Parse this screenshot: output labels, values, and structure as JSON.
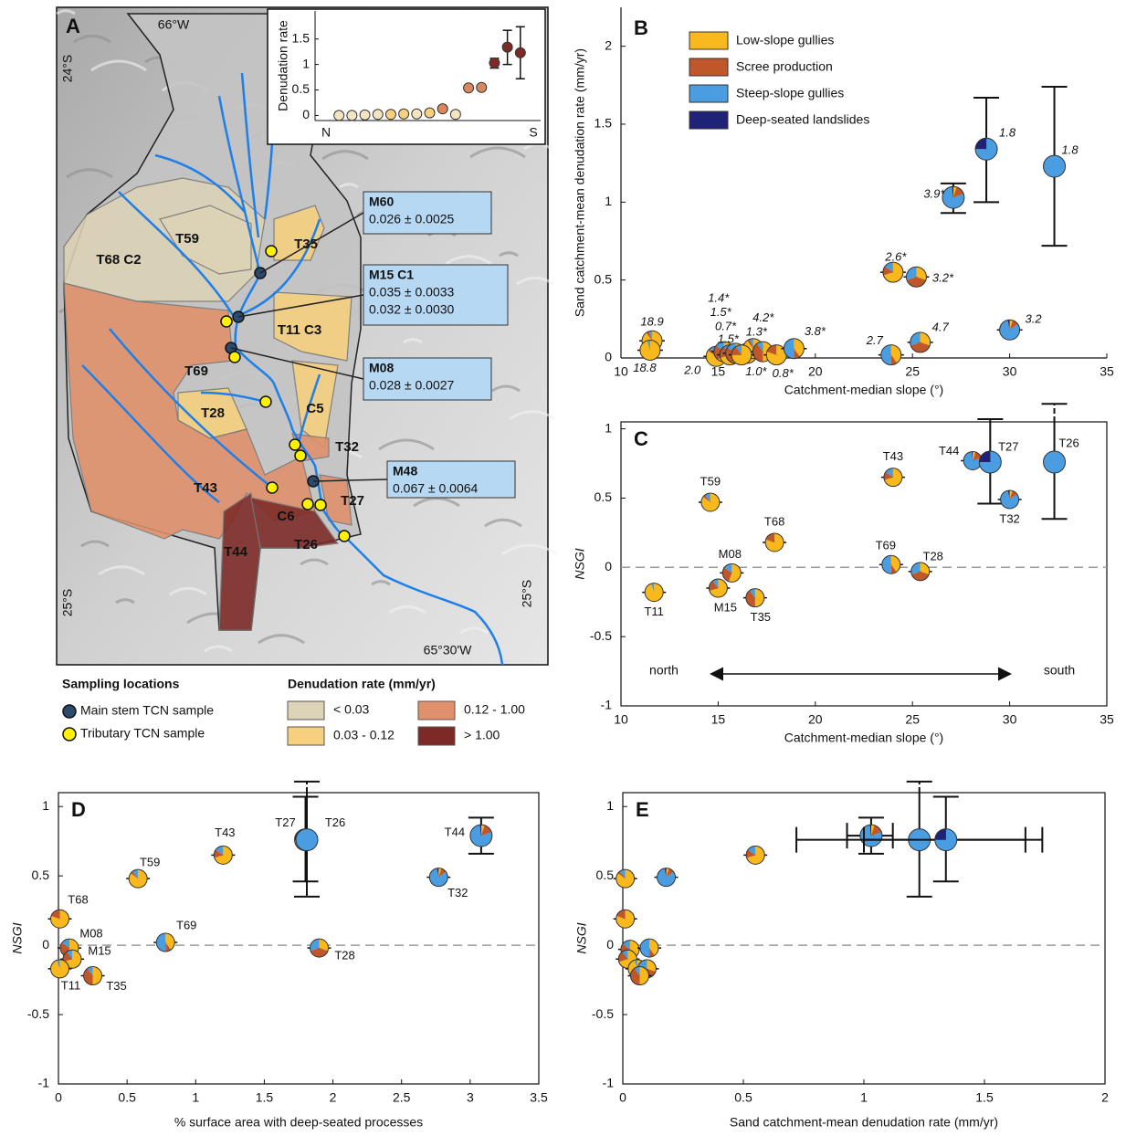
{
  "map": {
    "panel": "A",
    "coords": [
      "66°W",
      "24°S",
      "25°S",
      "25°S",
      "65°30'W"
    ],
    "catchments": [
      "T35",
      "T59",
      "T68 C2",
      "T11 C3",
      "T69",
      "C5",
      "T28",
      "T32",
      "T43",
      "T27",
      "C6",
      "T44",
      "T26"
    ],
    "samples": [
      {
        "name": "M60",
        "values": [
          "0.026 ± 0.0025"
        ]
      },
      {
        "name": "M15 C1",
        "values": [
          "0.035 ± 0.0033",
          "0.032 ± 0.0030"
        ]
      },
      {
        "name": "M08",
        "values": [
          "0.028 ± 0.0027"
        ]
      },
      {
        "name": "M48",
        "values": [
          "0.067 ± 0.0064"
        ]
      }
    ],
    "legend": {
      "sampling_title": "Sampling locations",
      "sampling": [
        {
          "label": "Main stem TCN sample",
          "color": "#2d4a6b"
        },
        {
          "label": "Tributary TCN sample",
          "color": "#fff200"
        }
      ],
      "rate_title": "Denudation rate (mm/yr)",
      "rate_classes": [
        {
          "label": "< 0.03",
          "color": "#ddd3b6"
        },
        {
          "label": "0.03 - 0.12",
          "color": "#f6d07e"
        },
        {
          "label": "0.12 - 1.00",
          "color": "#e0906a"
        },
        {
          "label": "> 1.00",
          "color": "#7d2a26"
        }
      ]
    }
  },
  "chart_data": [
    {
      "type": "scatter",
      "ylabel": "Denudation rate",
      "categories": [
        "N",
        null,
        null,
        null,
        null,
        null,
        null,
        null,
        null,
        null,
        null,
        null,
        null,
        null,
        null,
        null,
        "S"
      ],
      "values": [
        null,
        0.0,
        0.0,
        0.01,
        0.02,
        0.02,
        0.03,
        0.03,
        0.05,
        0.13,
        0.02,
        0.54,
        0.55,
        1.03,
        1.34,
        1.23,
        null
      ],
      "colors": [
        null,
        "#f3e4c2",
        "#f3e4c2",
        "#f3e4c2",
        "#f3e4c2",
        "#f6d07e",
        "#f6d07e",
        "#f3e4c2",
        "#f6d07e",
        "#d9895d",
        "#f3e4c2",
        "#d9895d",
        "#d9895d",
        "#7d2a26",
        "#7d2a26",
        "#7d2a26",
        null
      ],
      "errors": [
        null,
        null,
        null,
        null,
        null,
        null,
        null,
        null,
        null,
        null,
        null,
        null,
        null,
        [
          0.93,
          1.12
        ],
        [
          1.0,
          1.67
        ],
        [
          0.72,
          1.74
        ],
        null
      ],
      "ylim": [
        -0.1,
        2.05
      ],
      "yticks": [
        0,
        0.5,
        1,
        1.5
      ]
    },
    {
      "type": "pie-scatter",
      "panel": "B",
      "xlabel": "Catchment-median slope (°)",
      "ylabel": "Sand catchment-mean denudation rate (mm/yr)",
      "xlim": [
        10,
        35
      ],
      "ylim": [
        0,
        2.25
      ],
      "xticks": [
        10,
        15,
        20,
        25,
        30,
        35
      ],
      "yticks": [
        0,
        0.5,
        1,
        1.5,
        2
      ],
      "legend_position": "top-left",
      "legend": [
        {
          "name": "Low-slope gullies",
          "color": "#f9b81b"
        },
        {
          "name": "Scree production",
          "color": "#c0572b"
        },
        {
          "name": "Steep-slope gullies",
          "color": "#4a9de0"
        },
        {
          "name": "Deep-seated landslides",
          "color": "#1f2277"
        }
      ],
      "points": [
        {
          "x": 11.6,
          "y": 0.11,
          "label": "18.9",
          "shares": [
            90,
            5,
            5,
            0
          ]
        },
        {
          "x": 11.5,
          "y": 0.05,
          "label": "18.8",
          "shares": [
            95,
            0,
            5,
            0
          ]
        },
        {
          "x": 14.9,
          "y": 0.01,
          "label": "2.0",
          "shares": [
            85,
            5,
            10,
            0
          ]
        },
        {
          "x": 15.3,
          "y": 0.04,
          "label": "1.4*",
          "shares": [
            60,
            25,
            15,
            0
          ]
        },
        {
          "x": 15.6,
          "y": 0.02,
          "label": "1.5*",
          "shares": [
            70,
            20,
            10,
            0
          ]
        },
        {
          "x": 15.9,
          "y": 0.03,
          "label": "0.7*",
          "shares": [
            55,
            30,
            15,
            0
          ]
        },
        {
          "x": 16.5,
          "y": 0.03,
          "label": "1.5*",
          "shares": [
            80,
            10,
            10,
            0
          ]
        },
        {
          "x": 16.8,
          "y": 0.06,
          "label": "4.2*",
          "shares": [
            90,
            5,
            5,
            0
          ]
        },
        {
          "x": 17.3,
          "y": 0.04,
          "label": "1.3*",
          "shares": [
            50,
            40,
            10,
            0
          ]
        },
        {
          "x": 16.2,
          "y": 0.02,
          "label": "1.0*",
          "shares": [
            75,
            15,
            10,
            0
          ]
        },
        {
          "x": 18.0,
          "y": 0.02,
          "label": "0.8*",
          "shares": [
            80,
            20,
            0,
            0
          ]
        },
        {
          "x": 18.9,
          "y": 0.06,
          "label": "3.8*",
          "shares": [
            40,
            10,
            50,
            0
          ]
        },
        {
          "x": 24.0,
          "y": 0.55,
          "label": "2.6*",
          "shares": [
            70,
            15,
            15,
            0
          ]
        },
        {
          "x": 25.2,
          "y": 0.52,
          "label": "3.2*",
          "shares": [
            30,
            40,
            30,
            0
          ]
        },
        {
          "x": 23.9,
          "y": 0.02,
          "label": "2.7",
          "shares": [
            40,
            10,
            50,
            0
          ]
        },
        {
          "x": 25.4,
          "y": 0.1,
          "label": "4.7",
          "shares": [
            30,
            40,
            30,
            0
          ]
        },
        {
          "x": 27.1,
          "y": 1.03,
          "label": "3.9*",
          "shares": [
            5,
            15,
            78,
            2
          ],
          "yerr": [
            0.93,
            1.12
          ]
        },
        {
          "x": 28.8,
          "y": 1.34,
          "label": "1.8",
          "shares": [
            0,
            0,
            75,
            25
          ],
          "yerr": [
            1.0,
            1.67
          ]
        },
        {
          "x": 32.3,
          "y": 1.23,
          "label": "1.8",
          "shares": [
            0,
            0,
            100,
            0
          ],
          "yerr": [
            0.72,
            1.74
          ]
        },
        {
          "x": 30.0,
          "y": 0.18,
          "label": "3.2",
          "shares": [
            5,
            10,
            82,
            3
          ]
        }
      ]
    },
    {
      "type": "pie-scatter",
      "panel": "C",
      "xlabel": "Catchment-median slope (°)",
      "ylabel": "NSGI",
      "xlim": [
        10,
        35
      ],
      "ylim": [
        -1,
        1.05
      ],
      "xticks": [
        10,
        15,
        20,
        25,
        30,
        35
      ],
      "yticks": [
        -1,
        -0.5,
        0,
        0.5,
        1
      ],
      "hline": 0,
      "annotations": [
        "north",
        "south"
      ],
      "points": [
        {
          "x": 14.6,
          "y": 0.47,
          "label": "T59",
          "shares": [
            85,
            5,
            10,
            0
          ]
        },
        {
          "x": 17.9,
          "y": 0.18,
          "label": "T68",
          "shares": [
            80,
            20,
            0,
            0
          ]
        },
        {
          "x": 15.7,
          "y": -0.04,
          "label": "M08",
          "shares": [
            55,
            30,
            15,
            0
          ]
        },
        {
          "x": 15.0,
          "y": -0.15,
          "label": "M15",
          "shares": [
            70,
            20,
            10,
            0
          ]
        },
        {
          "x": 11.7,
          "y": -0.18,
          "label": "T11",
          "shares": [
            95,
            0,
            5,
            0
          ]
        },
        {
          "x": 16.9,
          "y": -0.22,
          "label": "T35",
          "shares": [
            50,
            40,
            10,
            0
          ]
        },
        {
          "x": 24.0,
          "y": 0.65,
          "label": "T43",
          "shares": [
            70,
            15,
            15,
            0
          ]
        },
        {
          "x": 23.9,
          "y": 0.02,
          "label": "T69",
          "shares": [
            40,
            10,
            50,
            0
          ]
        },
        {
          "x": 25.4,
          "y": -0.03,
          "label": "T28",
          "shares": [
            30,
            40,
            30,
            0
          ]
        },
        {
          "x": 28.1,
          "y": 0.77,
          "label": "T44",
          "shares": [
            5,
            15,
            78,
            2
          ]
        },
        {
          "x": 29.0,
          "y": 0.76,
          "label": "T27",
          "shares": [
            0,
            0,
            75,
            25
          ],
          "yerr": [
            0.46,
            1.07
          ]
        },
        {
          "x": 30.0,
          "y": 0.49,
          "label": "T32",
          "shares": [
            5,
            10,
            82,
            3
          ]
        },
        {
          "x": 32.3,
          "y": 0.76,
          "label": "T26",
          "shares": [
            0,
            0,
            100,
            0
          ],
          "yerr": [
            0.35,
            1.18
          ]
        }
      ]
    },
    {
      "type": "pie-scatter",
      "panel": "D",
      "xlabel": "% surface area with deep-seated processes",
      "ylabel": "NSGI",
      "xlim": [
        0,
        3.5
      ],
      "ylim": [
        -1,
        1.1
      ],
      "xticks": [
        0,
        0.5,
        1,
        1.5,
        2,
        2.5,
        3,
        3.5
      ],
      "yticks": [
        -1,
        -0.5,
        0,
        0.5,
        1
      ],
      "hline": 0,
      "points": [
        {
          "x": 0.01,
          "y": 0.19,
          "label": "T68",
          "shares": [
            80,
            20,
            0,
            0
          ]
        },
        {
          "x": 0.08,
          "y": -0.02,
          "label": "M08",
          "shares": [
            55,
            30,
            15,
            0
          ]
        },
        {
          "x": 0.1,
          "y": -0.1,
          "label": "M15",
          "shares": [
            70,
            20,
            10,
            0
          ]
        },
        {
          "x": 0.01,
          "y": -0.17,
          "label": "T11",
          "shares": [
            95,
            0,
            5,
            0
          ]
        },
        {
          "x": 0.25,
          "y": -0.22,
          "label": "T35",
          "shares": [
            50,
            40,
            10,
            0
          ]
        },
        {
          "x": 0.58,
          "y": 0.48,
          "label": "T59",
          "shares": [
            85,
            5,
            10,
            0
          ]
        },
        {
          "x": 0.78,
          "y": 0.02,
          "label": "T69",
          "shares": [
            40,
            10,
            50,
            0
          ]
        },
        {
          "x": 1.2,
          "y": 0.65,
          "label": "T43",
          "shares": [
            70,
            15,
            15,
            0
          ]
        },
        {
          "x": 1.8,
          "y": 0.76,
          "label": "T27",
          "shares": [
            0,
            0,
            75,
            25
          ],
          "yerr": [
            0.46,
            1.07
          ]
        },
        {
          "x": 1.81,
          "y": 0.76,
          "label": "T26",
          "shares": [
            0,
            0,
            100,
            0
          ],
          "yerr": [
            0.35,
            1.18
          ]
        },
        {
          "x": 1.9,
          "y": -0.02,
          "label": "T28",
          "shares": [
            30,
            40,
            30,
            0
          ]
        },
        {
          "x": 2.77,
          "y": 0.49,
          "label": "T32",
          "shares": [
            5,
            10,
            82,
            3
          ]
        },
        {
          "x": 3.08,
          "y": 0.79,
          "label": "T44",
          "shares": [
            5,
            15,
            78,
            2
          ],
          "yerr": [
            0.66,
            0.92
          ]
        }
      ]
    },
    {
      "type": "pie-scatter",
      "panel": "E",
      "xlabel": "Sand catchment-mean denudation rate (mm/yr)",
      "ylabel": "NSGI",
      "xlim": [
        0,
        2
      ],
      "ylim": [
        -1,
        1.1
      ],
      "xticks": [
        0,
        0.5,
        1,
        1.5,
        2
      ],
      "yticks": [
        -1,
        -0.5,
        0,
        0.5,
        1
      ],
      "hline": 0,
      "points": [
        {
          "x": 0.01,
          "y": 0.48,
          "shares": [
            85,
            5,
            10,
            0
          ]
        },
        {
          "x": 0.18,
          "y": 0.49,
          "shares": [
            5,
            10,
            82,
            3
          ]
        },
        {
          "x": 0.55,
          "y": 0.65,
          "shares": [
            70,
            15,
            15,
            0
          ]
        },
        {
          "x": 1.03,
          "y": 0.79,
          "shares": [
            5,
            15,
            78,
            2
          ],
          "yerr": [
            0.66,
            0.92
          ],
          "xerr": [
            0.93,
            1.12
          ]
        },
        {
          "x": 1.23,
          "y": 0.76,
          "shares": [
            0,
            0,
            100,
            0
          ],
          "yerr": [
            0.35,
            1.18
          ],
          "xerr": [
            0.72,
            1.74
          ]
        },
        {
          "x": 1.34,
          "y": 0.76,
          "shares": [
            0,
            0,
            75,
            25
          ],
          "yerr": [
            0.46,
            1.07
          ],
          "xerr": [
            1.0,
            1.67
          ]
        },
        {
          "x": 0.01,
          "y": 0.19,
          "shares": [
            80,
            20,
            0,
            0
          ]
        },
        {
          "x": 0.03,
          "y": -0.03,
          "shares": [
            55,
            30,
            15,
            0
          ]
        },
        {
          "x": 0.02,
          "y": -0.1,
          "shares": [
            70,
            20,
            10,
            0
          ]
        },
        {
          "x": 0.11,
          "y": -0.02,
          "shares": [
            40,
            10,
            50,
            0
          ]
        },
        {
          "x": 0.06,
          "y": -0.17,
          "shares": [
            95,
            0,
            5,
            0
          ]
        },
        {
          "x": 0.1,
          "y": -0.17,
          "shares": [
            30,
            40,
            30,
            0
          ]
        },
        {
          "x": 0.07,
          "y": -0.22,
          "shares": [
            50,
            40,
            10,
            0
          ]
        }
      ]
    }
  ]
}
